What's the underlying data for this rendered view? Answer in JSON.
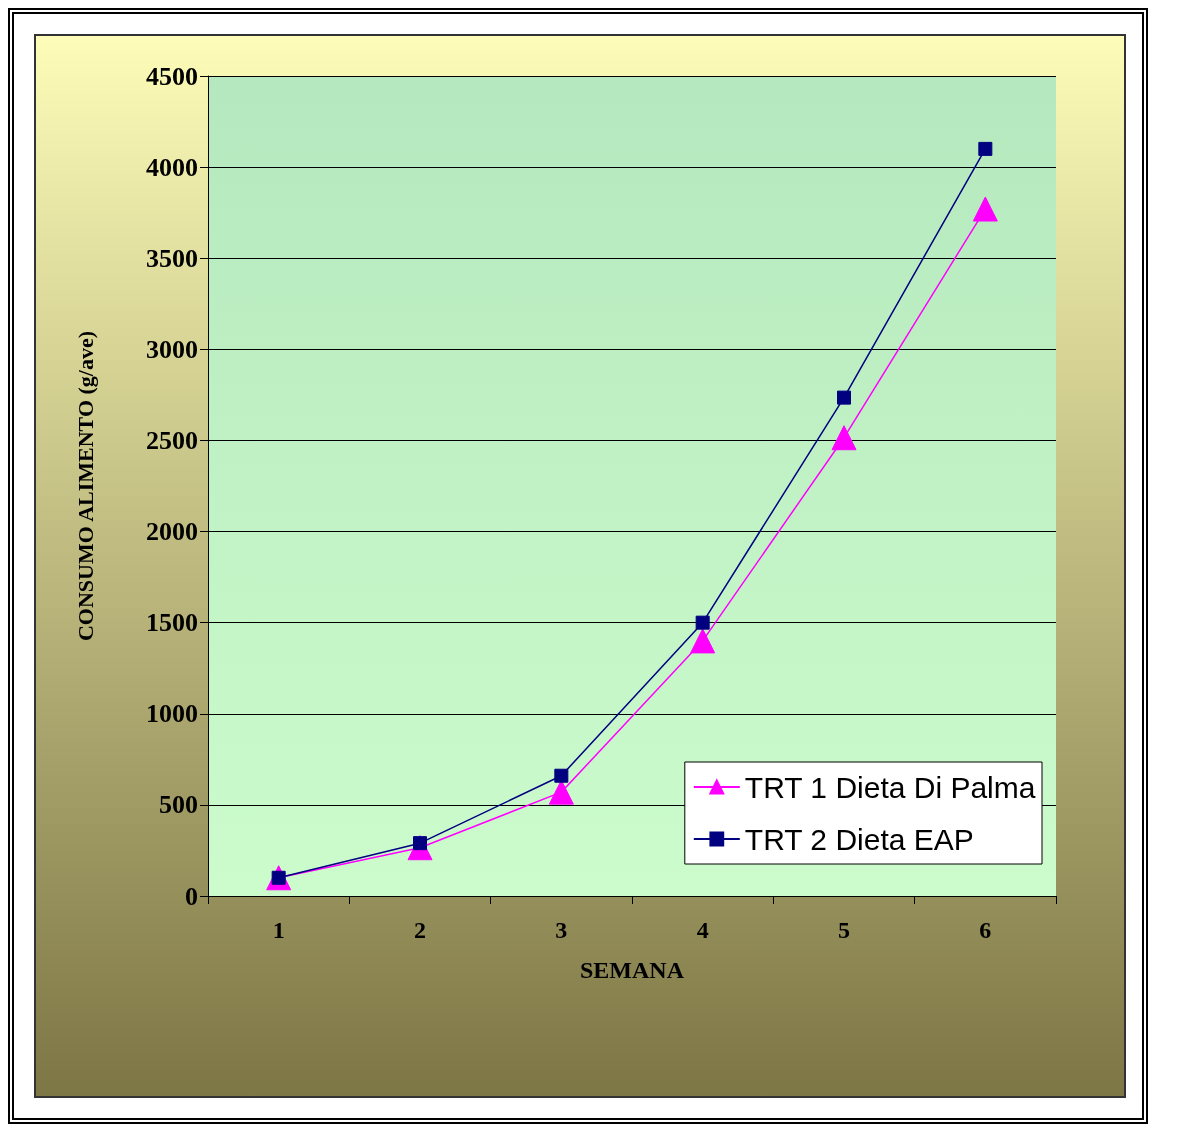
{
  "chart_data": {
    "type": "line",
    "xlabel": "SEMANA",
    "ylabel": "CONSUMO ALIMENTO (g/ave)",
    "categories": [
      "1",
      "2",
      "3",
      "4",
      "5",
      "6"
    ],
    "series": [
      {
        "name": "TRT 1 Dieta Di Palma",
        "color": "#ff00ff",
        "marker": "triangle",
        "values": [
          100,
          265,
          570,
          1400,
          2515,
          3770
        ]
      },
      {
        "name": "TRT 2 Dieta EAP",
        "color": "#000080",
        "marker": "square",
        "values": [
          100,
          290,
          660,
          1500,
          2735,
          4100
        ]
      }
    ],
    "ylim": [
      0,
      4500
    ],
    "yticks": [
      0,
      500,
      1000,
      1500,
      2000,
      2500,
      3000,
      3500,
      4000,
      4500
    ],
    "grid": "y",
    "legend": "bottom right",
    "line_style": "solid"
  }
}
